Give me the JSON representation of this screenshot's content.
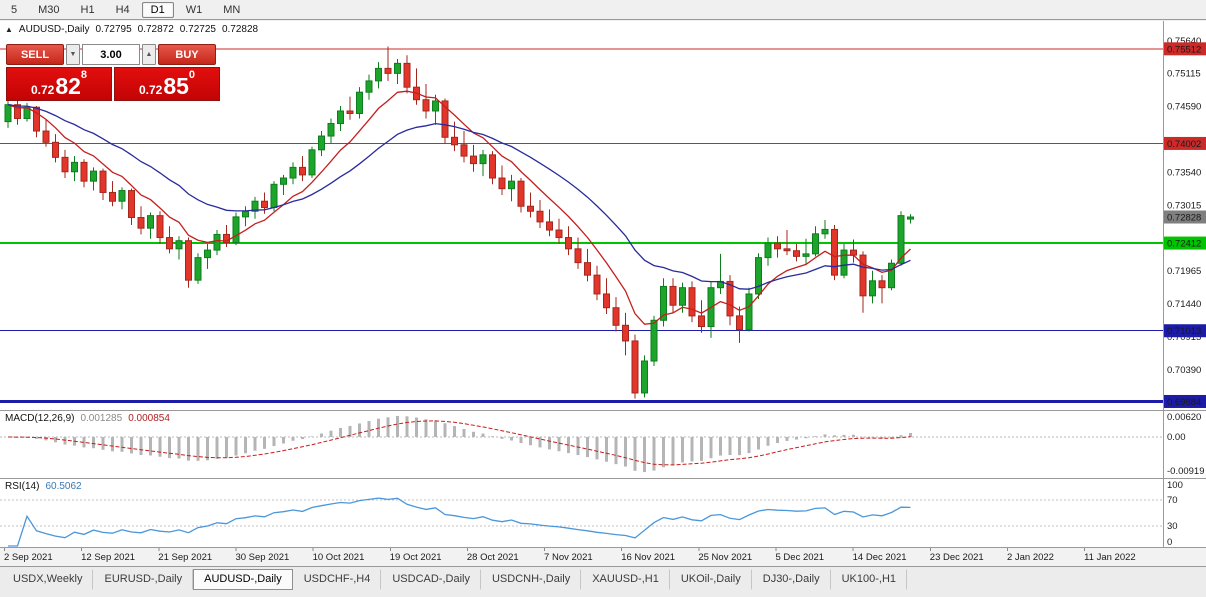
{
  "toolbar": {
    "timeframes": [
      {
        "label": "5",
        "active": false
      },
      {
        "label": "M30",
        "active": false
      },
      {
        "label": "H1",
        "active": false
      },
      {
        "label": "H4",
        "active": false
      },
      {
        "label": "D1",
        "active": true
      },
      {
        "label": "W1",
        "active": false
      },
      {
        "label": "MN",
        "active": false
      }
    ]
  },
  "chart_header": {
    "collapse_icon": "▲",
    "symbol_title": "AUDUSD-,Daily",
    "open": "0.72795",
    "high": "0.72872",
    "low": "0.72725",
    "close": "0.72828"
  },
  "trade_panel": {
    "sell_label": "SELL",
    "buy_label": "BUY",
    "volume": "3.00",
    "volume_down_icon": "▼",
    "volume_up_icon": "▲",
    "sell_price": {
      "small": "0.72",
      "big": "82",
      "sup": "8"
    },
    "buy_price": {
      "small": "0.72",
      "big": "85",
      "sup": "0"
    }
  },
  "indicators": {
    "macd": {
      "name": "MACD(12,26,9)",
      "value_main": "0.001285",
      "value_signal": "0.000854",
      "axis_max": "0.00620",
      "axis_zero": "0.00",
      "axis_min": "-0.00919"
    },
    "rsi": {
      "name": "RSI(14)",
      "value": "60.5062",
      "axis": [
        "100",
        "70",
        "30",
        "0"
      ],
      "levels": [
        70,
        30
      ]
    }
  },
  "tabs": [
    {
      "label": "USDX,Weekly",
      "active": false
    },
    {
      "label": "EURUSD-,Daily",
      "active": false
    },
    {
      "label": "AUDUSD-,Daily",
      "active": true
    },
    {
      "label": "USDCHF-,H4",
      "active": false
    },
    {
      "label": "USDCAD-,Daily",
      "active": false
    },
    {
      "label": "USDCNH-,Daily",
      "active": false
    },
    {
      "label": "XAUUSD-,H1",
      "active": false
    },
    {
      "label": "UKOil-,Daily",
      "active": false
    },
    {
      "label": "DJ30-,Daily",
      "active": false
    },
    {
      "label": "UK100-,H1",
      "active": false
    }
  ],
  "colors": {
    "up": "#1ca42b",
    "up_border": "#0e7d1d",
    "down": "#e2362a",
    "down_border": "#a3271d",
    "ma_fast": "#c41f1f",
    "ma_slow": "#2a2a9e",
    "macd_hist": "#b5b5b5",
    "macd_signal": "#c81c1c",
    "rsi_line": "#4a97dc",
    "line_red": "#cc2929",
    "line_green": "#00c400",
    "line_blue": "#1c1ca8",
    "current_badge": "#7f7f7f",
    "badge_text": "#ffffff",
    "axis_text": "#1a1a1a"
  },
  "chart_data": {
    "type": "candlestick",
    "symbol": "AUDUSD-",
    "timeframe": "Daily",
    "ylim": [
      0.6978,
      0.7594
    ],
    "price_ticks": [
      "0.75640",
      "0.75115",
      "0.74590",
      "0.73540",
      "0.73015",
      "0.71965",
      "0.71440",
      "0.70915",
      "0.70390"
    ],
    "price_badges": [
      {
        "price": 0.75512,
        "label": "0.75512",
        "color_key": "line_red"
      },
      {
        "price": 0.74002,
        "label": "0.74002",
        "color_key": "line_red"
      },
      {
        "price": 0.72828,
        "label": "0.72828",
        "color_key": "current_badge"
      },
      {
        "price": 0.72412,
        "label": "0.72412",
        "color_key": "line_green"
      },
      {
        "price": 0.71013,
        "label": "0.71013",
        "color_key": "line_blue"
      },
      {
        "price": 0.69884,
        "label": "0.69884",
        "color_key": "line_blue"
      }
    ],
    "hlines": [
      {
        "price": 0.75512,
        "color_key": "line_red",
        "width": 1
      },
      {
        "price": 0.74002,
        "color_key": "line_red",
        "width": 1
      },
      {
        "price": 0.72412,
        "color_key": "line_green",
        "width": 2
      },
      {
        "price": 0.71013,
        "color_key": "line_blue",
        "width": 1
      },
      {
        "price": 0.69884,
        "color_key": "line_blue",
        "width": 3
      }
    ],
    "x_labels": [
      "2 Sep 2021",
      "12 Sep 2021",
      "21 Sep 2021",
      "30 Sep 2021",
      "10 Oct 2021",
      "19 Oct 2021",
      "28 Oct 2021",
      "7 Nov 2021",
      "16 Nov 2021",
      "25 Nov 2021",
      "5 Dec 2021",
      "14 Dec 2021",
      "23 Dec 2021",
      "2 Jan 2022",
      "11 Jan 2022"
    ],
    "overlays": [
      {
        "name": "ema-fast",
        "period": 8,
        "color_key": "ma_fast"
      },
      {
        "name": "ema-slow",
        "period": 21,
        "color_key": "ma_slow"
      }
    ],
    "macd_params": {
      "fast": 12,
      "slow": 26,
      "signal": 9
    },
    "rsi_params": {
      "period": 14
    },
    "candles": [
      [
        0.7435,
        0.747,
        0.7425,
        0.7462
      ],
      [
        0.7462,
        0.7468,
        0.743,
        0.744
      ],
      [
        0.744,
        0.7465,
        0.7435,
        0.7458
      ],
      [
        0.7458,
        0.746,
        0.741,
        0.742
      ],
      [
        0.742,
        0.7438,
        0.7395,
        0.7402
      ],
      [
        0.7402,
        0.7415,
        0.737,
        0.7378
      ],
      [
        0.7378,
        0.739,
        0.7345,
        0.7355
      ],
      [
        0.7355,
        0.738,
        0.734,
        0.737
      ],
      [
        0.737,
        0.7375,
        0.733,
        0.734
      ],
      [
        0.734,
        0.7362,
        0.7325,
        0.7356
      ],
      [
        0.7356,
        0.736,
        0.731,
        0.7322
      ],
      [
        0.7322,
        0.734,
        0.73,
        0.7308
      ],
      [
        0.7308,
        0.733,
        0.7295,
        0.7325
      ],
      [
        0.7325,
        0.7328,
        0.727,
        0.7282
      ],
      [
        0.7282,
        0.73,
        0.7255,
        0.7265
      ],
      [
        0.7265,
        0.729,
        0.7248,
        0.7285
      ],
      [
        0.7285,
        0.7292,
        0.724,
        0.725
      ],
      [
        0.725,
        0.7268,
        0.7225,
        0.7232
      ],
      [
        0.7232,
        0.7252,
        0.7215,
        0.7245
      ],
      [
        0.7245,
        0.725,
        0.717,
        0.7182
      ],
      [
        0.7182,
        0.7225,
        0.7176,
        0.7218
      ],
      [
        0.7218,
        0.724,
        0.72,
        0.723
      ],
      [
        0.723,
        0.7262,
        0.7222,
        0.7255
      ],
      [
        0.7255,
        0.727,
        0.7235,
        0.7242
      ],
      [
        0.7242,
        0.729,
        0.7238,
        0.7283
      ],
      [
        0.7283,
        0.73,
        0.7268,
        0.7292
      ],
      [
        0.7292,
        0.7315,
        0.728,
        0.7308
      ],
      [
        0.7308,
        0.7322,
        0.7288,
        0.7298
      ],
      [
        0.7298,
        0.734,
        0.7292,
        0.7335
      ],
      [
        0.7335,
        0.735,
        0.7318,
        0.7345
      ],
      [
        0.7345,
        0.737,
        0.7335,
        0.7362
      ],
      [
        0.7362,
        0.738,
        0.734,
        0.735
      ],
      [
        0.735,
        0.7395,
        0.7345,
        0.739
      ],
      [
        0.739,
        0.742,
        0.738,
        0.7412
      ],
      [
        0.7412,
        0.744,
        0.74,
        0.7432
      ],
      [
        0.7432,
        0.746,
        0.742,
        0.7452
      ],
      [
        0.7452,
        0.7475,
        0.7438,
        0.7448
      ],
      [
        0.7448,
        0.749,
        0.744,
        0.7482
      ],
      [
        0.7482,
        0.751,
        0.747,
        0.75
      ],
      [
        0.75,
        0.753,
        0.7488,
        0.752
      ],
      [
        0.752,
        0.7555,
        0.75,
        0.7512
      ],
      [
        0.7512,
        0.7535,
        0.7495,
        0.7528
      ],
      [
        0.7528,
        0.7541,
        0.748,
        0.749
      ],
      [
        0.749,
        0.752,
        0.7462,
        0.747
      ],
      [
        0.747,
        0.7495,
        0.744,
        0.7452
      ],
      [
        0.7452,
        0.7478,
        0.743,
        0.7468
      ],
      [
        0.7468,
        0.7472,
        0.74,
        0.741
      ],
      [
        0.741,
        0.7435,
        0.7388,
        0.7398
      ],
      [
        0.7398,
        0.742,
        0.737,
        0.738
      ],
      [
        0.738,
        0.7398,
        0.7355,
        0.7368
      ],
      [
        0.7368,
        0.739,
        0.7348,
        0.7382
      ],
      [
        0.7382,
        0.7388,
        0.7335,
        0.7345
      ],
      [
        0.7345,
        0.7365,
        0.7318,
        0.7328
      ],
      [
        0.7328,
        0.735,
        0.7308,
        0.734
      ],
      [
        0.734,
        0.7345,
        0.729,
        0.73
      ],
      [
        0.73,
        0.7322,
        0.7282,
        0.7292
      ],
      [
        0.7292,
        0.731,
        0.7265,
        0.7275
      ],
      [
        0.7275,
        0.7295,
        0.7252,
        0.7262
      ],
      [
        0.7262,
        0.728,
        0.724,
        0.725
      ],
      [
        0.725,
        0.7268,
        0.7222,
        0.7232
      ],
      [
        0.7232,
        0.725,
        0.72,
        0.721
      ],
      [
        0.721,
        0.7232,
        0.718,
        0.719
      ],
      [
        0.719,
        0.7205,
        0.715,
        0.716
      ],
      [
        0.716,
        0.7185,
        0.7128,
        0.7138
      ],
      [
        0.7138,
        0.7155,
        0.71,
        0.711
      ],
      [
        0.711,
        0.713,
        0.7062,
        0.7085
      ],
      [
        0.7085,
        0.7095,
        0.6993,
        0.7002
      ],
      [
        0.7002,
        0.7062,
        0.6995,
        0.7053
      ],
      [
        0.7053,
        0.7125,
        0.7045,
        0.7118
      ],
      [
        0.7118,
        0.7185,
        0.7108,
        0.7172
      ],
      [
        0.7172,
        0.7185,
        0.713,
        0.7142
      ],
      [
        0.7142,
        0.7178,
        0.713,
        0.717
      ],
      [
        0.717,
        0.718,
        0.7115,
        0.7125
      ],
      [
        0.7125,
        0.715,
        0.7098,
        0.7108
      ],
      [
        0.7108,
        0.718,
        0.709,
        0.717
      ],
      [
        0.717,
        0.7224,
        0.716,
        0.718
      ],
      [
        0.718,
        0.719,
        0.711,
        0.7125
      ],
      [
        0.7125,
        0.714,
        0.7082,
        0.7103
      ],
      [
        0.7103,
        0.717,
        0.71,
        0.716
      ],
      [
        0.716,
        0.7225,
        0.7152,
        0.7218
      ],
      [
        0.7218,
        0.725,
        0.7205,
        0.7241
      ],
      [
        0.7241,
        0.7252,
        0.7218,
        0.7232
      ],
      [
        0.7232,
        0.7262,
        0.7222,
        0.7229
      ],
      [
        0.7229,
        0.724,
        0.7212,
        0.722
      ],
      [
        0.722,
        0.7248,
        0.7208,
        0.7224
      ],
      [
        0.7224,
        0.7268,
        0.722,
        0.7256
      ],
      [
        0.7256,
        0.7278,
        0.7248,
        0.7263
      ],
      [
        0.7263,
        0.727,
        0.7182,
        0.719
      ],
      [
        0.719,
        0.724,
        0.7185,
        0.723
      ],
      [
        0.723,
        0.7247,
        0.721,
        0.7222
      ],
      [
        0.7222,
        0.7228,
        0.713,
        0.7157
      ],
      [
        0.7157,
        0.7197,
        0.7145,
        0.7181
      ],
      [
        0.7181,
        0.719,
        0.7145,
        0.717
      ],
      [
        0.717,
        0.7215,
        0.7166,
        0.7209
      ],
      [
        0.7209,
        0.7292,
        0.7205,
        0.7285
      ],
      [
        0.72795,
        0.72872,
        0.72725,
        0.72828
      ]
    ]
  }
}
